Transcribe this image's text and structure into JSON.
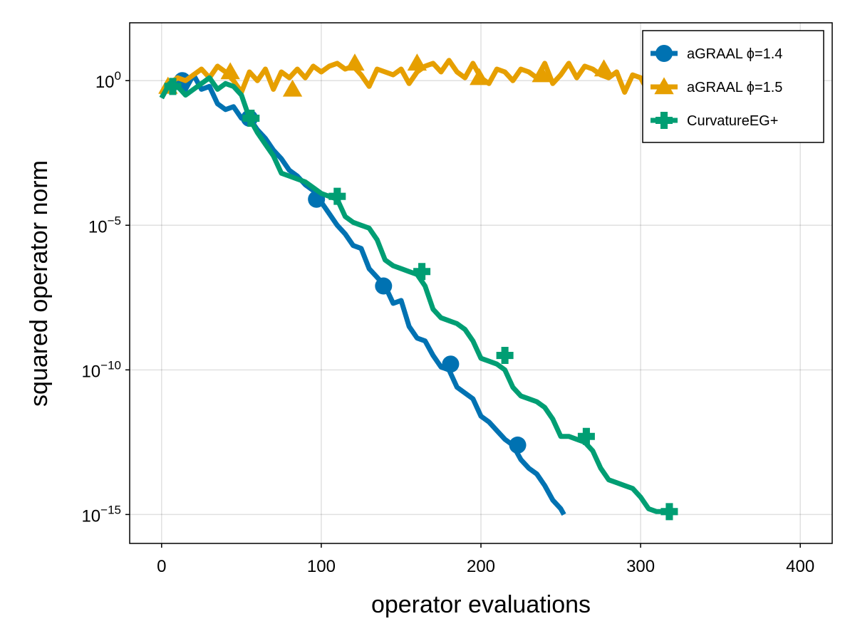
{
  "chart_data": {
    "type": "line",
    "xlabel": "operator evaluations",
    "ylabel": "squared operator norm",
    "xlim": [
      -20,
      420
    ],
    "ylim_log10": [
      -16,
      2
    ],
    "yscale": "log10",
    "grid": true,
    "legend_position": "top-right",
    "x_ticks": [
      {
        "value": 0,
        "label": "0"
      },
      {
        "value": 100,
        "label": "100"
      },
      {
        "value": 200,
        "label": "200"
      },
      {
        "value": 300,
        "label": "300"
      },
      {
        "value": 400,
        "label": "400"
      }
    ],
    "y_ticks": [
      {
        "value": 0,
        "base": "10",
        "exp": "0"
      },
      {
        "value": -5,
        "base": "10",
        "exp": "−5"
      },
      {
        "value": -10,
        "base": "10",
        "exp": "−10"
      },
      {
        "value": -15,
        "base": "10",
        "exp": "−15"
      }
    ],
    "series": [
      {
        "name": "aGRAAL ϕ=1.4",
        "color": "#0072B2",
        "marker": "circle",
        "log10_y": true,
        "x": [
          0,
          5,
          10,
          15,
          20,
          25,
          30,
          35,
          40,
          45,
          50,
          55,
          60,
          65,
          70,
          75,
          80,
          85,
          90,
          95,
          100,
          105,
          110,
          115,
          120,
          125,
          130,
          135,
          140,
          145,
          150,
          155,
          160,
          165,
          170,
          175,
          180,
          185,
          190,
          195,
          200,
          205,
          210,
          215,
          220,
          225,
          230,
          235,
          240,
          245,
          250,
          252
        ],
        "y": [
          -0.6,
          -0.1,
          0.0,
          -0.3,
          0.2,
          -0.3,
          -0.2,
          -0.8,
          -1.0,
          -0.9,
          -1.3,
          -1.3,
          -1.7,
          -2.0,
          -2.4,
          -2.7,
          -3.1,
          -3.3,
          -3.6,
          -3.8,
          -4.2,
          -4.6,
          -5.0,
          -5.3,
          -5.7,
          -5.8,
          -6.5,
          -6.8,
          -7.1,
          -7.7,
          -7.6,
          -8.5,
          -8.9,
          -9.0,
          -9.5,
          -9.9,
          -10.0,
          -10.6,
          -10.8,
          -11.0,
          -11.6,
          -11.8,
          -12.1,
          -12.4,
          -12.6,
          -13.1,
          -13.4,
          -13.6,
          -14.0,
          -14.5,
          -14.8,
          -15.0
        ],
        "marker_x": [
          13,
          55,
          97,
          139,
          181,
          223
        ],
        "marker_y": [
          0.0,
          -1.3,
          -4.1,
          -7.1,
          -9.8,
          -12.6
        ]
      },
      {
        "name": "aGRAAL ϕ=1.5",
        "color": "#E69F00",
        "marker": "triangle",
        "log10_y": true,
        "x": [
          0,
          5,
          10,
          15,
          20,
          25,
          30,
          35,
          40,
          45,
          50,
          55,
          60,
          65,
          70,
          75,
          80,
          85,
          90,
          95,
          100,
          105,
          110,
          115,
          120,
          125,
          130,
          135,
          140,
          145,
          150,
          155,
          160,
          165,
          170,
          175,
          180,
          185,
          190,
          195,
          200,
          205,
          210,
          215,
          220,
          225,
          230,
          235,
          240,
          245,
          250,
          255,
          260,
          265,
          270,
          275,
          280,
          285,
          290,
          295,
          300,
          305,
          310
        ],
        "y": [
          -0.5,
          -0.1,
          0.1,
          0.0,
          0.2,
          0.4,
          0.1,
          0.5,
          0.3,
          0.0,
          -0.4,
          0.3,
          0.0,
          0.4,
          -0.3,
          0.3,
          0.1,
          0.4,
          0.1,
          0.5,
          0.3,
          0.5,
          0.6,
          0.4,
          0.5,
          0.2,
          -0.2,
          0.4,
          0.3,
          0.2,
          0.4,
          -0.1,
          0.3,
          0.5,
          0.6,
          0.3,
          0.7,
          0.3,
          0.1,
          0.6,
          0.1,
          -0.1,
          0.4,
          0.3,
          0.0,
          0.4,
          0.3,
          0.1,
          0.6,
          -0.1,
          0.2,
          0.6,
          0.1,
          0.5,
          0.4,
          0.2,
          0.1,
          0.3,
          -0.4,
          0.2,
          0.1,
          -0.4,
          -0.2
        ],
        "marker_x": [
          4,
          43,
          82,
          121,
          160,
          199,
          238,
          277
        ],
        "marker_y": [
          -0.2,
          0.3,
          -0.3,
          0.6,
          0.6,
          0.1,
          0.2,
          0.4
        ]
      },
      {
        "name": "CurvatureEG+",
        "color": "#009E73",
        "marker": "cross",
        "log10_y": true,
        "x": [
          0,
          5,
          10,
          15,
          20,
          25,
          30,
          35,
          40,
          45,
          50,
          55,
          60,
          65,
          70,
          75,
          80,
          85,
          90,
          95,
          100,
          105,
          110,
          115,
          120,
          125,
          130,
          135,
          140,
          145,
          150,
          155,
          160,
          165,
          170,
          175,
          180,
          185,
          190,
          195,
          200,
          205,
          210,
          215,
          220,
          225,
          230,
          235,
          240,
          245,
          250,
          255,
          260,
          265,
          270,
          275,
          280,
          285,
          290,
          295,
          300,
          305,
          310,
          315,
          318
        ],
        "y": [
          -0.6,
          -0.1,
          -0.2,
          -0.5,
          -0.3,
          -0.1,
          0.1,
          -0.3,
          -0.1,
          -0.2,
          -0.5,
          -1.3,
          -1.8,
          -2.2,
          -2.6,
          -3.2,
          -3.3,
          -3.4,
          -3.5,
          -3.7,
          -3.9,
          -4.0,
          -4.1,
          -4.7,
          -4.9,
          -5.0,
          -5.1,
          -5.5,
          -6.2,
          -6.4,
          -6.5,
          -6.6,
          -6.7,
          -7.1,
          -7.9,
          -8.2,
          -8.3,
          -8.4,
          -8.6,
          -9.0,
          -9.6,
          -9.7,
          -9.8,
          -10.0,
          -10.6,
          -10.9,
          -11.0,
          -11.1,
          -11.3,
          -11.7,
          -12.3,
          -12.3,
          -12.4,
          -12.5,
          -12.8,
          -13.4,
          -13.8,
          -13.9,
          -14.0,
          -14.1,
          -14.4,
          -14.8,
          -14.9,
          -14.9,
          -14.9
        ],
        "marker_x": [
          7,
          56,
          110,
          163,
          215,
          266,
          318
        ],
        "marker_y": [
          -0.2,
          -1.3,
          -4.0,
          -6.6,
          -9.5,
          -12.3,
          -14.9
        ]
      }
    ]
  }
}
